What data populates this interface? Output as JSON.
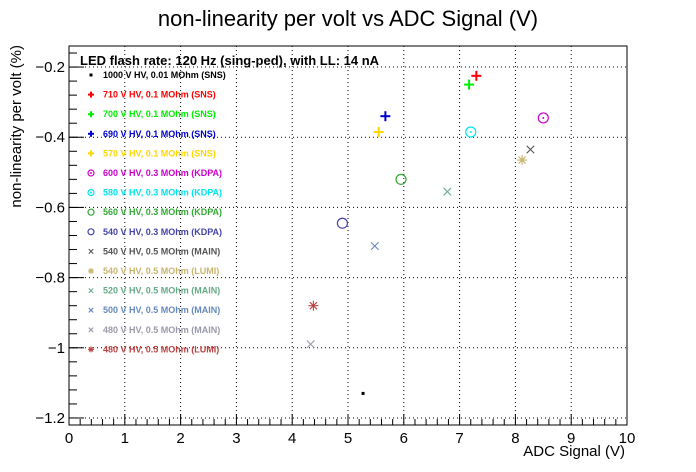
{
  "chart_data": {
    "type": "scatter",
    "title": "non-linearity per volt vs ADC Signal (V)",
    "xlabel": "ADC Signal (V)",
    "ylabel": "non-linearity per volt (%)",
    "xlim": [
      0,
      10
    ],
    "ylim": [
      -1.22,
      -0.14
    ],
    "x_ticks": [
      0,
      1,
      2,
      3,
      4,
      5,
      6,
      7,
      8,
      9,
      10
    ],
    "x_tick_labels": [
      "0",
      "1",
      "2",
      "3",
      "4",
      "5",
      "6",
      "7",
      "8",
      "9",
      "10"
    ],
    "y_ticks": [
      -1.2,
      -1.0,
      -0.8,
      -0.6,
      -0.4,
      -0.2
    ],
    "y_tick_labels": [
      "−1.2",
      "−1",
      "−0.8",
      "−0.6",
      "−0.4",
      "−0.2"
    ],
    "grid": true,
    "legend_position": "top-left",
    "annotation": "LED flash rate: 120 Hz  (sing-ped), with LL: 14 nA",
    "series": [
      {
        "name": "1000 V HV, 0.01 MOhm (SNS)",
        "color": "#000000",
        "marker": "dot",
        "points": [
          [
            5.27,
            -1.13
          ]
        ]
      },
      {
        "name": "710 V HV, 0.1 MOhm (SNS)",
        "color": "#ff0000",
        "marker": "plus",
        "points": [
          [
            7.3,
            -0.225
          ]
        ]
      },
      {
        "name": "700 V HV, 0.1 MOhm (SNS)",
        "color": "#00ee00",
        "marker": "plus",
        "points": [
          [
            7.17,
            -0.25
          ]
        ]
      },
      {
        "name": "690 V HV, 0.1 MOhm (SNS)",
        "color": "#0000cc",
        "marker": "plus",
        "points": [
          [
            5.67,
            -0.34
          ]
        ]
      },
      {
        "name": "570 V HV, 0.1 MOhm (SNS)",
        "color": "#ffd700",
        "marker": "plus",
        "points": [
          [
            5.55,
            -0.385
          ]
        ]
      },
      {
        "name": "600 V HV, 0.3 MOhm (KDPA)",
        "color": "#cc00cc",
        "marker": "circle-dot",
        "points": [
          [
            8.5,
            -0.345
          ]
        ]
      },
      {
        "name": "580 V HV, 0.3 MOhm (KDPA)",
        "color": "#00e5ee",
        "marker": "circle-dot",
        "points": [
          [
            7.2,
            -0.385
          ]
        ]
      },
      {
        "name": "560 V HV, 0.3 MOhm (KDPA)",
        "color": "#33aa33",
        "marker": "circle",
        "points": [
          [
            5.95,
            -0.52
          ]
        ]
      },
      {
        "name": "540 V HV, 0.3 MOhm (KDPA)",
        "color": "#4444aa",
        "marker": "circle",
        "points": [
          [
            4.9,
            -0.645
          ]
        ]
      },
      {
        "name": "540 V HV, 0.5 MOhm (MAIN)",
        "color": "#555555",
        "marker": "x",
        "points": [
          [
            8.27,
            -0.435
          ]
        ]
      },
      {
        "name": "540 V HV, 0.5 MOhm (LUMI)",
        "color": "#c8b46e",
        "marker": "asterisk",
        "points": [
          [
            8.12,
            -0.465
          ]
        ]
      },
      {
        "name": "520 V HV, 0.5 MOhm (MAIN)",
        "color": "#66aa88",
        "marker": "x",
        "points": [
          [
            6.78,
            -0.555
          ]
        ]
      },
      {
        "name": "500 V HV, 0.5 MOhm (MAIN)",
        "color": "#6688bb",
        "marker": "x",
        "points": [
          [
            5.48,
            -0.71
          ]
        ]
      },
      {
        "name": "480 V HV, 0.5 MOhm (MAIN)",
        "color": "#9999aa",
        "marker": "x",
        "points": [
          [
            4.33,
            -0.99
          ]
        ]
      },
      {
        "name": "480 V HV, 0.5 MOhm (LUMI)",
        "color": "#bb4444",
        "marker": "asterisk",
        "points": [
          [
            4.38,
            -0.88
          ]
        ]
      }
    ]
  }
}
